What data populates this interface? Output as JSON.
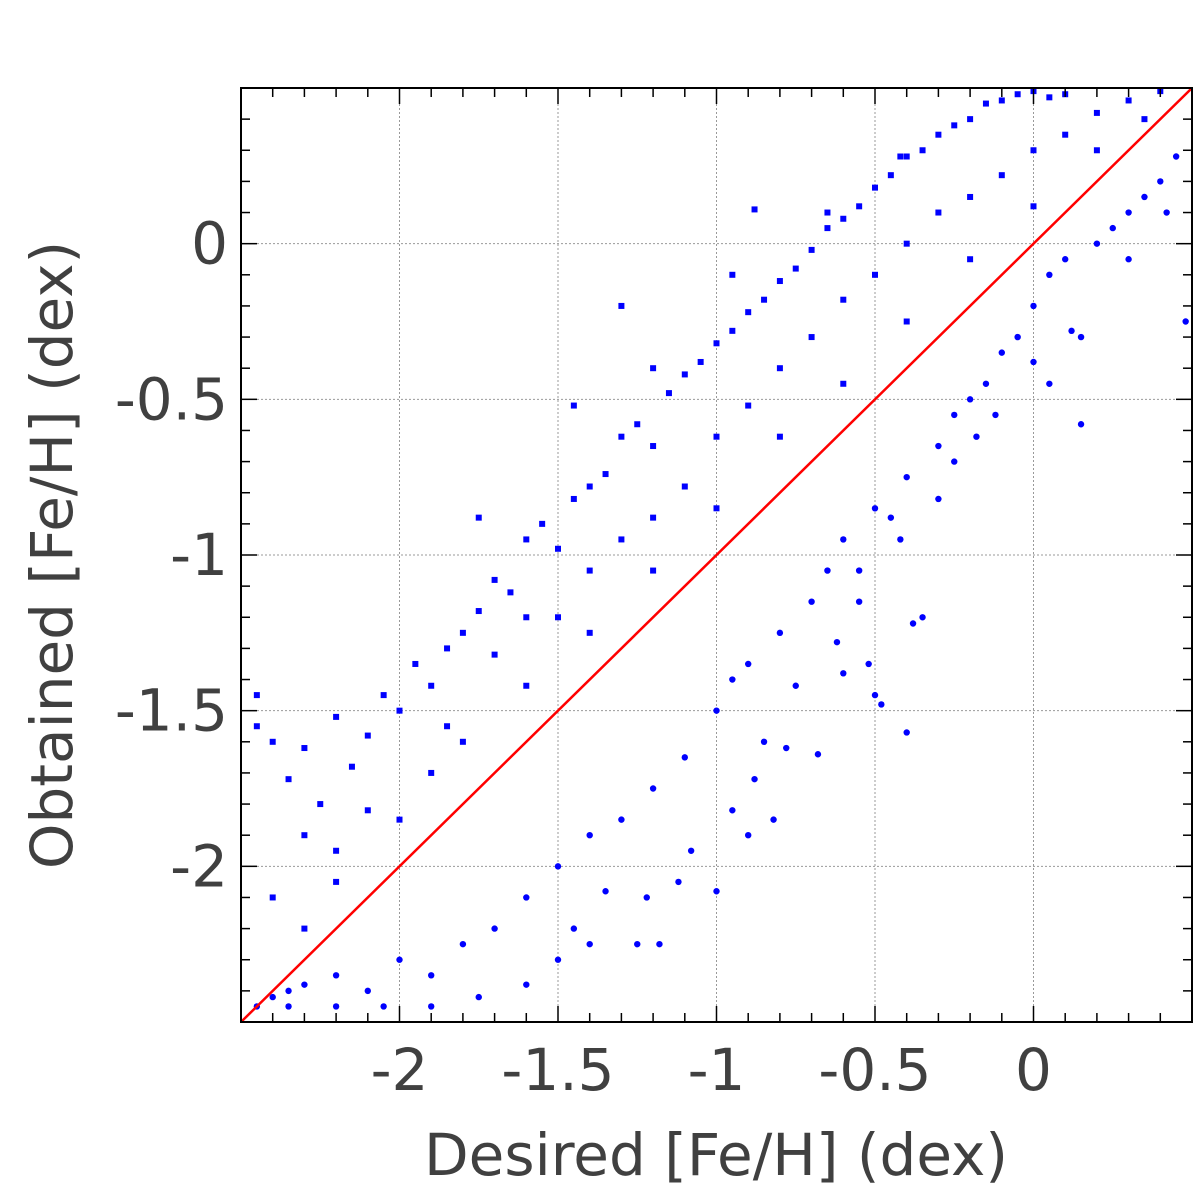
{
  "chart_data": {
    "type": "scatter",
    "title": "",
    "xlabel": "Desired [Fe/H] (dex)",
    "ylabel": "Obtained [Fe/H] (dex)",
    "xlim": [
      -2.5,
      0.5
    ],
    "ylim": [
      -2.5,
      0.5
    ],
    "x_ticks": [
      -2,
      -1.5,
      -1,
      -0.5,
      0
    ],
    "x_tick_labels": [
      "-2",
      "-1.5",
      "-1",
      "-0.5",
      "0"
    ],
    "y_ticks": [
      -2,
      -1.5,
      -1,
      -0.5,
      0
    ],
    "y_tick_labels": [
      "-2",
      "-1.5",
      "-1",
      "-0.5",
      "0"
    ],
    "grid": true,
    "legend": "none",
    "colors": {
      "points": "#0000ff",
      "identity_line": "#ff0000",
      "grid": "#999999",
      "text": "#404040"
    },
    "series": [
      {
        "marker": "square",
        "color": "#0000ff",
        "points": [
          [
            -2.45,
            -1.55
          ],
          [
            -2.4,
            -1.6
          ],
          [
            -2.35,
            -1.72
          ],
          [
            -2.3,
            -1.62
          ],
          [
            -2.25,
            -1.8
          ],
          [
            -2.2,
            -1.52
          ],
          [
            -2.15,
            -1.68
          ],
          [
            -2.1,
            -1.58
          ],
          [
            -2.05,
            -1.45
          ],
          [
            -2.0,
            -1.5
          ],
          [
            -1.95,
            -1.35
          ],
          [
            -1.9,
            -1.42
          ],
          [
            -1.85,
            -1.3
          ],
          [
            -1.8,
            -1.25
          ],
          [
            -1.75,
            -1.18
          ],
          [
            -1.7,
            -1.08
          ],
          [
            -1.65,
            -1.12
          ],
          [
            -1.6,
            -0.95
          ],
          [
            -1.55,
            -0.9
          ],
          [
            -1.5,
            -0.98
          ],
          [
            -1.45,
            -0.82
          ],
          [
            -1.4,
            -0.78
          ],
          [
            -1.35,
            -0.74
          ],
          [
            -1.3,
            -0.62
          ],
          [
            -1.25,
            -0.58
          ],
          [
            -1.2,
            -0.65
          ],
          [
            -1.15,
            -0.48
          ],
          [
            -1.1,
            -0.42
          ],
          [
            -1.05,
            -0.38
          ],
          [
            -1.0,
            -0.32
          ],
          [
            -0.95,
            -0.28
          ],
          [
            -0.9,
            -0.22
          ],
          [
            -0.85,
            -0.18
          ],
          [
            -0.8,
            -0.12
          ],
          [
            -0.75,
            -0.08
          ],
          [
            -0.7,
            -0.02
          ],
          [
            -0.65,
            0.05
          ],
          [
            -0.6,
            0.08
          ],
          [
            -0.55,
            0.12
          ],
          [
            -0.5,
            0.18
          ],
          [
            -0.45,
            0.22
          ],
          [
            -0.4,
            0.28
          ],
          [
            -0.35,
            0.3
          ],
          [
            -0.3,
            0.35
          ],
          [
            -0.25,
            0.38
          ],
          [
            -0.2,
            0.4
          ],
          [
            -0.15,
            0.45
          ],
          [
            -0.1,
            0.46
          ],
          [
            -0.05,
            0.48
          ],
          [
            0.0,
            0.49
          ],
          [
            0.05,
            0.47
          ],
          [
            0.1,
            0.48
          ],
          [
            -1.3,
            -0.2
          ],
          [
            -0.88,
            0.11
          ],
          [
            -0.65,
            0.1
          ],
          [
            -0.42,
            0.28
          ],
          [
            -2.45,
            -1.45
          ],
          [
            -2.3,
            -1.9
          ],
          [
            -2.2,
            -2.05
          ],
          [
            -2.1,
            -1.82
          ],
          [
            -1.9,
            -1.7
          ],
          [
            -1.85,
            -1.55
          ],
          [
            -1.7,
            -1.32
          ],
          [
            -1.6,
            -1.2
          ],
          [
            -1.5,
            -1.2
          ],
          [
            -1.4,
            -1.05
          ],
          [
            -1.3,
            -0.95
          ],
          [
            -1.2,
            -0.88
          ],
          [
            -1.1,
            -0.78
          ],
          [
            -1.0,
            -0.62
          ],
          [
            -0.9,
            -0.52
          ],
          [
            -0.8,
            -0.4
          ],
          [
            -0.7,
            -0.3
          ],
          [
            -0.6,
            -0.18
          ],
          [
            -0.5,
            -0.1
          ],
          [
            -0.4,
            0.0
          ],
          [
            -0.3,
            0.1
          ],
          [
            -0.2,
            0.15
          ],
          [
            -0.1,
            0.22
          ],
          [
            0.0,
            0.3
          ],
          [
            0.1,
            0.35
          ],
          [
            0.2,
            0.42
          ],
          [
            0.3,
            0.46
          ],
          [
            0.4,
            0.49
          ],
          [
            -2.4,
            -2.1
          ],
          [
            -2.3,
            -2.2
          ],
          [
            -2.2,
            -1.95
          ],
          [
            -2.0,
            -1.85
          ],
          [
            -1.8,
            -1.6
          ],
          [
            -1.6,
            -1.42
          ],
          [
            -1.4,
            -1.25
          ],
          [
            -1.2,
            -1.05
          ],
          [
            -1.0,
            -0.85
          ],
          [
            -0.8,
            -0.62
          ],
          [
            -0.6,
            -0.45
          ],
          [
            -0.4,
            -0.25
          ],
          [
            -0.2,
            -0.05
          ],
          [
            0.0,
            0.12
          ],
          [
            0.2,
            0.3
          ],
          [
            0.35,
            0.4
          ],
          [
            -1.75,
            -0.88
          ],
          [
            -1.45,
            -0.52
          ],
          [
            -1.2,
            -0.4
          ],
          [
            -0.95,
            -0.1
          ]
        ]
      },
      {
        "marker": "circle",
        "color": "#0000ff",
        "points": [
          [
            -2.45,
            -2.45
          ],
          [
            -2.4,
            -2.42
          ],
          [
            -2.35,
            -2.4
          ],
          [
            -2.3,
            -2.38
          ],
          [
            -2.2,
            -2.35
          ],
          [
            -2.1,
            -2.4
          ],
          [
            -2.0,
            -2.3
          ],
          [
            -1.9,
            -2.35
          ],
          [
            -1.8,
            -2.25
          ],
          [
            -1.7,
            -2.2
          ],
          [
            -1.6,
            -2.1
          ],
          [
            -1.5,
            -2.0
          ],
          [
            -1.45,
            -2.2
          ],
          [
            -1.4,
            -1.9
          ],
          [
            -1.3,
            -1.85
          ],
          [
            -1.25,
            -2.25
          ],
          [
            -1.2,
            -1.75
          ],
          [
            -1.1,
            -1.65
          ],
          [
            -1.0,
            -1.5
          ],
          [
            -0.95,
            -1.4
          ],
          [
            -0.9,
            -1.35
          ],
          [
            -0.85,
            -1.6
          ],
          [
            -0.8,
            -1.25
          ],
          [
            -0.75,
            -1.42
          ],
          [
            -0.7,
            -1.15
          ],
          [
            -0.65,
            -1.05
          ],
          [
            -0.6,
            -0.95
          ],
          [
            -0.55,
            -1.05
          ],
          [
            -0.5,
            -0.85
          ],
          [
            -0.45,
            -0.88
          ],
          [
            -0.4,
            -0.75
          ],
          [
            -0.35,
            -1.2
          ],
          [
            -0.3,
            -0.65
          ],
          [
            -0.25,
            -0.55
          ],
          [
            -0.2,
            -0.5
          ],
          [
            -0.15,
            -0.45
          ],
          [
            -0.1,
            -0.35
          ],
          [
            -0.05,
            -0.3
          ],
          [
            0.0,
            -0.2
          ],
          [
            0.05,
            -0.1
          ],
          [
            0.1,
            -0.05
          ],
          [
            0.15,
            -0.3
          ],
          [
            0.2,
            0.0
          ],
          [
            0.25,
            0.05
          ],
          [
            0.3,
            0.1
          ],
          [
            0.35,
            0.15
          ],
          [
            0.4,
            0.2
          ],
          [
            0.45,
            0.28
          ],
          [
            0.48,
            -0.25
          ],
          [
            0.15,
            -0.58
          ],
          [
            0.05,
            -0.45
          ],
          [
            -0.12,
            -0.55
          ],
          [
            -0.3,
            -0.82
          ],
          [
            -0.38,
            -1.22
          ],
          [
            -0.48,
            -1.48
          ],
          [
            -0.52,
            -1.35
          ],
          [
            -0.62,
            -1.28
          ],
          [
            -0.78,
            -1.62
          ],
          [
            -0.88,
            -1.72
          ],
          [
            -0.95,
            -1.82
          ],
          [
            -1.08,
            -1.95
          ],
          [
            -1.12,
            -2.05
          ],
          [
            -1.22,
            -2.1
          ],
          [
            -1.35,
            -2.08
          ],
          [
            -1.4,
            -2.25
          ],
          [
            -1.5,
            -2.3
          ],
          [
            -1.6,
            -2.38
          ],
          [
            -1.75,
            -2.42
          ],
          [
            -1.9,
            -2.45
          ],
          [
            -2.05,
            -2.45
          ],
          [
            -2.2,
            -2.45
          ],
          [
            -2.35,
            -2.45
          ],
          [
            -0.4,
            -1.57
          ],
          [
            -0.5,
            -1.45
          ],
          [
            -0.68,
            -1.64
          ],
          [
            -0.9,
            -1.9
          ],
          [
            -1.18,
            -2.25
          ],
          [
            -1.0,
            -2.08
          ],
          [
            -0.82,
            -1.85
          ],
          [
            -0.6,
            -1.38
          ],
          [
            -0.55,
            -1.15
          ],
          [
            -0.42,
            -0.95
          ],
          [
            -0.25,
            -0.7
          ],
          [
            -0.18,
            -0.62
          ],
          [
            0.0,
            -0.38
          ],
          [
            0.12,
            -0.28
          ],
          [
            0.3,
            -0.05
          ],
          [
            0.42,
            0.1
          ]
        ]
      }
    ],
    "reference_line": {
      "label": "",
      "from": [
        -2.5,
        -2.5
      ],
      "to": [
        0.5,
        0.5
      ],
      "color": "#ff0000"
    }
  }
}
